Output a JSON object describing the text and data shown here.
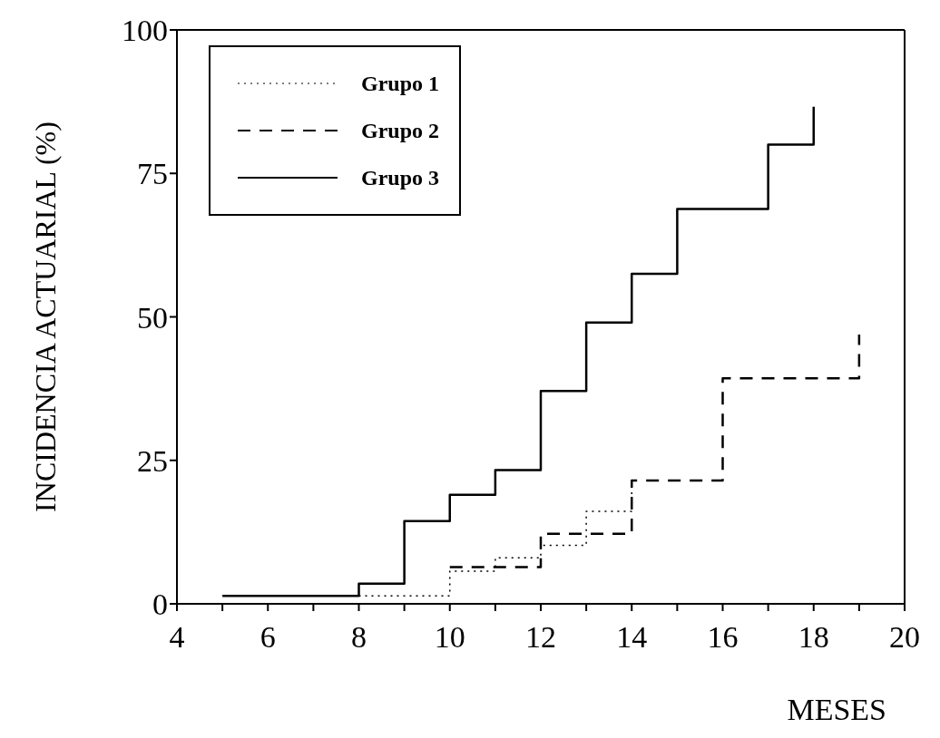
{
  "chart_data": {
    "type": "step",
    "xlabel": "MESES",
    "ylabel": "INCIDENCIA ACTUARIAL (%)",
    "xlim": [
      4,
      20
    ],
    "ylim": [
      0,
      100
    ],
    "xticks": [
      4,
      {
        "value": 5,
        "label": null
      },
      6,
      {
        "value": 7,
        "label": null
      },
      8,
      {
        "value": 9,
        "label": null
      },
      10,
      {
        "value": 11,
        "label": null
      },
      12,
      {
        "value": 13,
        "label": null
      },
      14,
      {
        "value": 15,
        "label": null
      },
      16,
      {
        "value": 17,
        "label": null
      },
      18,
      {
        "value": 19,
        "label": null
      },
      20
    ],
    "yticks": [
      0,
      25,
      50,
      75,
      100
    ],
    "grid": false,
    "legend": "top left",
    "series": [
      {
        "name": "Grupo 1",
        "color": "#000000",
        "line_style": "dotted",
        "x": [
          8,
          10,
          11,
          12,
          13,
          14
        ],
        "values": [
          1.4,
          5.7,
          8,
          10.2,
          16.1,
          21.5
        ]
      },
      {
        "name": "Grupo 2",
        "color": "#000000",
        "line_style": "dashed",
        "x": [
          10,
          12,
          14,
          16,
          19
        ],
        "values": [
          6.4,
          12.2,
          21.5,
          39.3,
          46.9
        ]
      },
      {
        "name": "Grupo 3",
        "color": "#000000",
        "line_style": "solid",
        "x": [
          5,
          8,
          9,
          10,
          11,
          12,
          13,
          14,
          15,
          17,
          18
        ],
        "values": [
          1.4,
          3.5,
          14.4,
          19,
          23.3,
          37.1,
          49,
          57.5,
          68.8,
          80,
          86.6
        ]
      }
    ]
  }
}
